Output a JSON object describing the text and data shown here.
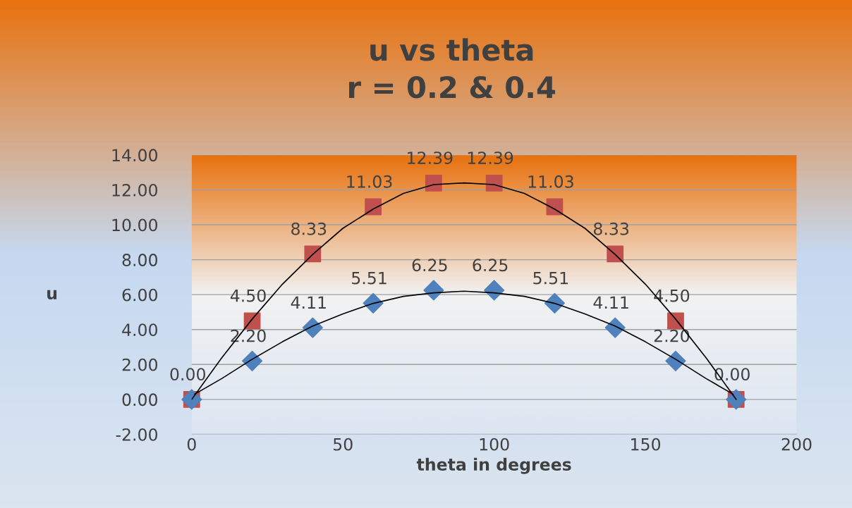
{
  "chart_data": {
    "type": "scatter",
    "title": "u vs theta\nr = 0.2 & 0.4",
    "xlabel": "theta in degrees",
    "ylabel": "u",
    "x": [
      0,
      20,
      40,
      60,
      80,
      100,
      120,
      140,
      160,
      180
    ],
    "series": [
      {
        "color": "#c0504d",
        "marker": "square",
        "values": [
          0.0,
          4.5,
          8.33,
          11.03,
          12.39,
          12.39,
          11.03,
          8.33,
          4.5,
          0.0
        ],
        "value_labels": [
          "0.00",
          "4.50",
          "8.33",
          "11.03",
          "12.39",
          "12.39",
          "11.03",
          "8.33",
          "4.50",
          "0.00"
        ]
      },
      {
        "color": "#4f81bd",
        "marker": "diamond",
        "values": [
          0.0,
          2.2,
          4.11,
          5.51,
          6.25,
          6.25,
          5.51,
          4.11,
          2.2,
          0.0
        ],
        "value_labels": [
          null,
          "2.20",
          "4.11",
          "5.51",
          "6.25",
          "6.25",
          "5.51",
          "4.11",
          "2.20",
          null
        ]
      },
      {
        "type": "line",
        "color": "#000000",
        "marker": "none",
        "x": [
          0,
          10,
          20,
          30,
          40,
          50,
          60,
          70,
          80,
          90,
          100,
          110,
          120,
          130,
          140,
          150,
          160,
          170,
          180
        ],
        "values": [
          0.0,
          2.4,
          4.6,
          6.6,
          8.3,
          9.8,
          10.9,
          11.8,
          12.3,
          12.4,
          12.3,
          11.8,
          10.9,
          9.8,
          8.3,
          6.6,
          4.6,
          2.4,
          0.0
        ]
      },
      {
        "type": "line",
        "color": "#000000",
        "marker": "none",
        "x": [
          1,
          10,
          20,
          30,
          40,
          50,
          60,
          70,
          80,
          90,
          100,
          110,
          120,
          130,
          140,
          150,
          160,
          170,
          179
        ],
        "values": [
          0.3,
          1.2,
          2.3,
          3.3,
          4.2,
          4.9,
          5.5,
          5.9,
          6.1,
          6.2,
          6.1,
          5.9,
          5.5,
          4.9,
          4.2,
          3.3,
          2.3,
          1.2,
          0.3
        ]
      }
    ],
    "xlim": [
      0,
      200
    ],
    "xticks": [
      0,
      50,
      100,
      150,
      200
    ],
    "ylim": [
      -2,
      14
    ],
    "yticks": [
      {
        "value": -2,
        "label": "-2.00"
      },
      {
        "value": 0,
        "label": "0.00"
      },
      {
        "value": 2,
        "label": "2.00"
      },
      {
        "value": 4,
        "label": "4.00"
      },
      {
        "value": 6,
        "label": "6.00"
      },
      {
        "value": 8,
        "label": "8.00"
      },
      {
        "value": 10,
        "label": "10.00"
      },
      {
        "value": 12,
        "label": "12.00"
      },
      {
        "value": 14,
        "label": "14.00"
      }
    ],
    "grid": "y"
  }
}
